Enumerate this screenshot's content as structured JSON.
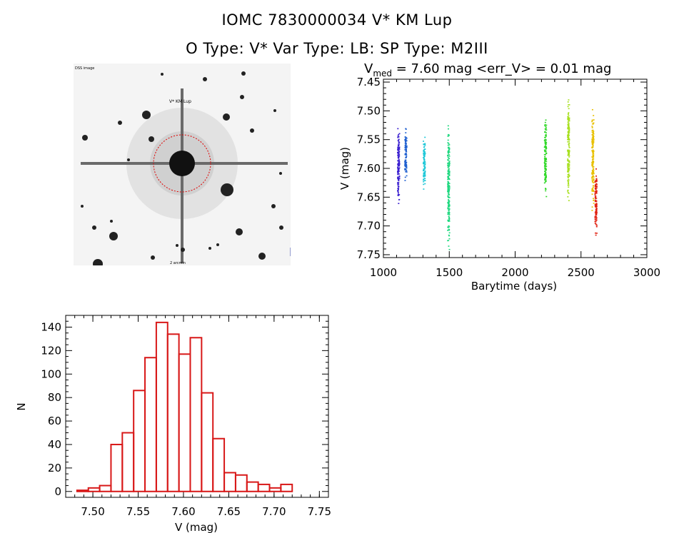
{
  "header": {
    "title_line1": "IOMC 7830000034    V* KM Lup",
    "title_line2": "O Type: V*  Var Type: LB:  SP Type: M2III"
  },
  "image_panel": {
    "marker_label": "V* KM Lup",
    "top_left_label": "DSS image",
    "bottom_label": "2 arcmin"
  },
  "colors": {
    "histogram_bar": "#d81818",
    "circle": "#e00000",
    "seasons": [
      "#3a1fd0",
      "#2060d0",
      "#20c8d8",
      "#20d880",
      "#30d828",
      "#a8e020",
      "#e8c000",
      "#e02010"
    ]
  },
  "chart_data": [
    {
      "type": "scatter",
      "title_main": "V",
      "title_sub": "med",
      "title_rest": " = 7.60 mag <err_V> = 0.01 mag",
      "xlabel": "Barytime (days)",
      "ylabel": "V (mag)",
      "xlim": [
        1000,
        3000
      ],
      "ylim": [
        7.755,
        7.445
      ],
      "y_inverted": true,
      "xticks": [
        1000,
        1500,
        2000,
        2500,
        3000
      ],
      "xtick_labels": [
        "1000",
        "1500",
        "2000",
        "2500",
        "3000"
      ],
      "yticks": [
        7.45,
        7.5,
        7.55,
        7.6,
        7.65,
        7.7,
        7.75
      ],
      "ytick_labels": [
        "7.45",
        "7.50",
        "7.55",
        "7.60",
        "7.65",
        "7.70",
        "7.75"
      ],
      "groups": [
        {
          "x": 1110,
          "ymin": 7.53,
          "ymax": 7.66,
          "color": "#3a1fd0"
        },
        {
          "x": 1165,
          "ymin": 7.53,
          "ymax": 7.62,
          "color": "#2060d0"
        },
        {
          "x": 1305,
          "ymin": 7.545,
          "ymax": 7.635,
          "color": "#20c8d8"
        },
        {
          "x": 1490,
          "ymin": 7.525,
          "ymax": 7.74,
          "color": "#20d880"
        },
        {
          "x": 2225,
          "ymin": 7.515,
          "ymax": 7.648,
          "color": "#30d828"
        },
        {
          "x": 2400,
          "ymin": 7.48,
          "ymax": 7.655,
          "color": "#a8e020"
        },
        {
          "x": 2585,
          "ymin": 7.497,
          "ymax": 7.672,
          "color": "#e8c000"
        },
        {
          "x": 2608,
          "ymin": 7.6,
          "ymax": 7.715,
          "color": "#e02010"
        }
      ]
    },
    {
      "type": "bar",
      "xlabel": "V (mag)",
      "ylabel": "N",
      "xlim": [
        7.47,
        7.76
      ],
      "ylim": [
        -5,
        150
      ],
      "xticks": [
        7.5,
        7.55,
        7.6,
        7.65,
        7.7,
        7.75
      ],
      "xtick_labels": [
        "7.50",
        "7.55",
        "7.60",
        "7.65",
        "7.70",
        "7.75"
      ],
      "yticks": [
        0,
        20,
        40,
        60,
        80,
        100,
        120,
        140
      ],
      "ytick_labels": [
        "0",
        "20",
        "40",
        "60",
        "80",
        "100",
        "120",
        "140"
      ],
      "bin_start": 7.4825,
      "bin_width": 0.0125,
      "values": [
        1,
        3,
        5,
        40,
        50,
        86,
        114,
        144,
        134,
        117,
        131,
        84,
        45,
        16,
        14,
        8,
        6,
        3,
        6
      ]
    }
  ]
}
